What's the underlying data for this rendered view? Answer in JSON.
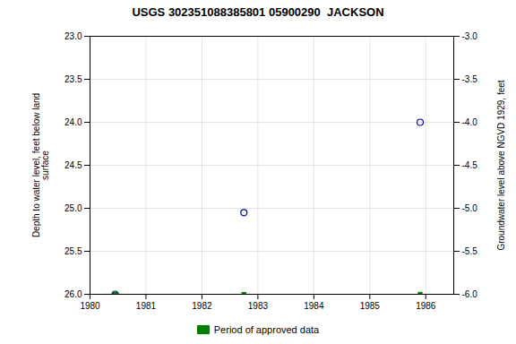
{
  "chart_data": {
    "type": "scatter",
    "title": "USGS 302351088385801 05900290  JACKSON",
    "ylabel": "Depth to water level, feet below land\nsurface",
    "y2label": "Groundwater level above NGVD 1929, feet",
    "x": [
      1980.45,
      1982.75,
      1985.9
    ],
    "series": [
      {
        "color": "#0000cc",
        "marker": "circle",
        "values": [
          26.0,
          25.05,
          24.0
        ]
      },
      {
        "name": "Period of approved data",
        "color": "#008000",
        "marker": "square",
        "values": [
          26.0,
          26.0,
          26.0
        ]
      }
    ],
    "xlim": [
      1980,
      1986.5
    ],
    "xticks": [
      1980,
      1981,
      1982,
      1983,
      1984,
      1985,
      1986
    ],
    "ylim": [
      26.0,
      23.0
    ],
    "yticks": [
      {
        "value": 23.0,
        "label": "23.0"
      },
      23.5,
      {
        "value": 24.0,
        "label": "24.0"
      },
      24.5,
      {
        "value": 25.0,
        "label": "25.0"
      },
      25.5,
      {
        "value": 26.0,
        "label": "26.0"
      }
    ],
    "y2lim": [
      -6.0,
      -3.0
    ],
    "y2ticks": [
      {
        "value": -3.0,
        "label": "-3.0"
      },
      -3.5,
      {
        "value": -4.0,
        "label": "-4.0"
      },
      -4.5,
      {
        "value": -5.0,
        "label": "-5.0"
      },
      -5.5,
      {
        "value": -6.0,
        "label": "-6.0"
      }
    ],
    "grid": true,
    "legend": "bottom"
  }
}
